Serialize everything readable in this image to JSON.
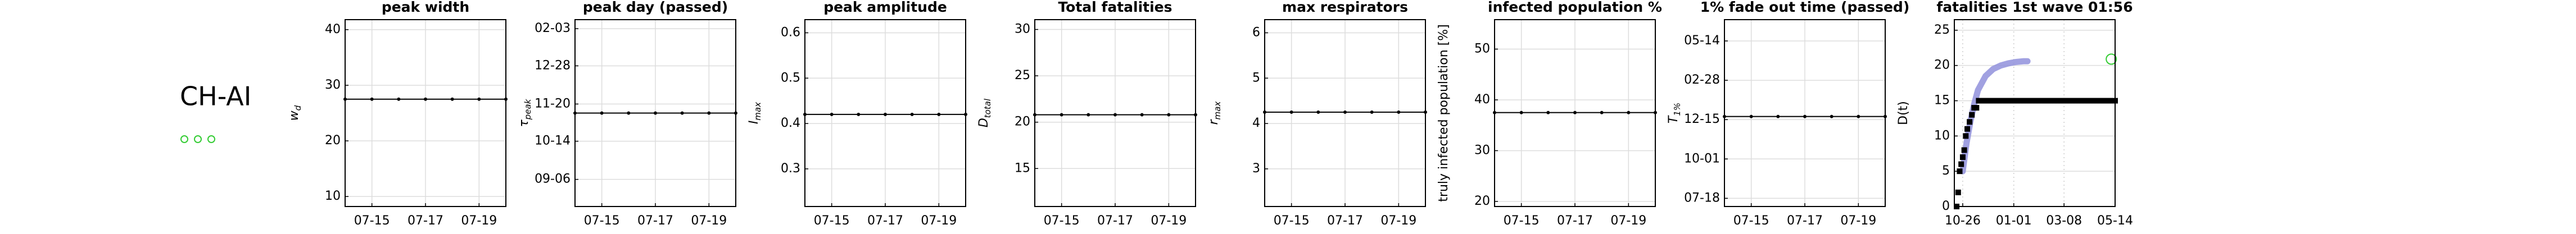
{
  "label": "CH-AI",
  "chart_data": [
    {
      "type": "line",
      "title": "peak width",
      "y_label": "w",
      "y_label_sub": "d",
      "categories": [
        null,
        "07-15",
        null,
        "07-17",
        null,
        "07-19",
        null
      ],
      "values": [
        27.5,
        27.5,
        27.5,
        27.5,
        27.5,
        27.5,
        27.5
      ],
      "color": "#000000",
      "ylim": [
        8.2,
        41.8
      ],
      "yticks": [
        10,
        20,
        30,
        40
      ],
      "grid": true
    },
    {
      "type": "line",
      "title": "peak day (passed)",
      "y_label": "τ",
      "y_label_sub": "peak",
      "categories": [
        null,
        "07-15",
        null,
        "07-17",
        null,
        "07-19",
        null
      ],
      "values": [
        66,
        66,
        66,
        66,
        66,
        66,
        66
      ],
      "color": "#000000",
      "ylim": [
        -27,
        159
      ],
      "yticks": [
        {
          "value": 0,
          "label": "09-06"
        },
        {
          "value": 38,
          "label": "10-14"
        },
        {
          "value": 75,
          "label": "11-20"
        },
        {
          "value": 113,
          "label": "12-28"
        },
        {
          "value": 150,
          "label": "02-03"
        }
      ],
      "grid": true
    },
    {
      "type": "line",
      "title": "peak amplitude",
      "y_label": "I",
      "y_label_sub": "max",
      "categories": [
        null,
        "07-15",
        null,
        "07-17",
        null,
        "07-19",
        null
      ],
      "values": [
        0.42,
        0.42,
        0.42,
        0.42,
        0.42,
        0.42,
        0.42
      ],
      "color": "#000000",
      "ylim": [
        0.217,
        0.629
      ],
      "yticks": [
        0.3,
        0.4,
        0.5,
        0.6
      ],
      "grid": true
    },
    {
      "type": "line",
      "title": "Total fatalities",
      "y_label": "D",
      "y_label_sub": "total",
      "categories": [
        null,
        "07-15",
        null,
        "07-17",
        null,
        "07-19",
        null
      ],
      "values": [
        20.8,
        20.8,
        20.8,
        20.8,
        20.8,
        20.8,
        20.8
      ],
      "color": "#000000",
      "ylim": [
        10.9,
        31.06
      ],
      "yticks": [
        15,
        20,
        25,
        30
      ],
      "grid": true
    },
    {
      "type": "line",
      "title": "max respirators",
      "y_label": "r",
      "y_label_sub": "max",
      "categories": [
        null,
        "07-15",
        null,
        "07-17",
        null,
        "07-19",
        null
      ],
      "values": [
        4.25,
        4.25,
        4.25,
        4.25,
        4.25,
        4.25,
        4.25
      ],
      "color": "#000000",
      "ylim": [
        2.17,
        6.29
      ],
      "yticks": [
        3,
        4,
        5,
        6
      ],
      "grid": true
    },
    {
      "type": "line",
      "title": "infected population %",
      "y_label": "truly infected population [%]",
      "categories": [
        null,
        "07-15",
        null,
        "07-17",
        null,
        "07-19",
        null
      ],
      "values": [
        37.5,
        37.5,
        37.5,
        37.5,
        37.5,
        37.5,
        37.5
      ],
      "color": "#000000",
      "ylim": [
        19.0,
        55.8
      ],
      "yticks": [
        20,
        30,
        40,
        50
      ],
      "grid": true
    },
    {
      "type": "line",
      "title": "1% fade out time (passed)",
      "y_label": "T",
      "y_label_sub": "1%",
      "categories": [
        null,
        "07-15",
        null,
        "07-17",
        null,
        "07-19",
        null
      ],
      "values": [
        156,
        156,
        156,
        156,
        156,
        156,
        156
      ],
      "color": "#000000",
      "ylim": [
        -15.6,
        340.6
      ],
      "yticks": [
        {
          "value": 0,
          "label": "07-18"
        },
        {
          "value": 75,
          "label": "10-01"
        },
        {
          "value": 150,
          "label": "12-15"
        },
        {
          "value": 225,
          "label": "02-28"
        },
        {
          "value": 300,
          "label": "05-14"
        }
      ],
      "grid": true
    },
    {
      "type": "scatter",
      "title": "fatalities 1st wave 01:56",
      "y_label": "D(t)",
      "xlim": [
        -11,
        200
      ],
      "xticks": [
        {
          "value": 0,
          "label": "10-26"
        },
        {
          "value": 67,
          "label": "01-01"
        },
        {
          "value": 133,
          "label": "03-08"
        },
        {
          "value": 200,
          "label": "05-14"
        }
      ],
      "ylim": [
        0,
        26.5
      ],
      "yticks": [
        0,
        5,
        10,
        15,
        20,
        25
      ],
      "grid": true,
      "series": [
        {
          "marker": "line",
          "color": "#9090dc",
          "x": [
            0,
            5,
            10,
            15,
            20,
            30,
            40,
            50,
            60,
            70,
            80,
            85
          ],
          "values": [
            5,
            9,
            12,
            14.5,
            16.5,
            18.5,
            19.5,
            20,
            20.3,
            20.5,
            20.6,
            20.6
          ]
        },
        {
          "marker": "square",
          "color": "#000000",
          "x": [
            -8,
            -6,
            -4,
            -2,
            0,
            2,
            4,
            6,
            9,
            12,
            15,
            18,
            21,
            24,
            28,
            32,
            36,
            40,
            44,
            48,
            52,
            56,
            60,
            64,
            68,
            72,
            76,
            80,
            84,
            88,
            92,
            96,
            100,
            104,
            108,
            112,
            116,
            120,
            124,
            128,
            132,
            136,
            140,
            144,
            148,
            152,
            156,
            160,
            164,
            168,
            172,
            176,
            180,
            184,
            188,
            192,
            196,
            200
          ],
          "values": [
            0,
            2,
            5,
            6,
            7,
            8,
            10,
            11,
            12,
            13,
            14,
            14,
            15,
            15,
            15,
            15,
            15,
            15,
            15,
            15,
            15,
            15,
            15,
            15,
            15,
            15,
            15,
            15,
            15,
            15,
            15,
            15,
            15,
            15,
            15,
            15,
            15,
            15,
            15,
            15,
            15,
            15,
            15,
            15,
            15,
            15,
            15,
            15,
            15,
            15,
            15,
            15,
            15,
            15,
            15,
            15,
            15,
            15
          ]
        },
        {
          "marker": "circle",
          "color": "#33cc33",
          "x": [
            195
          ],
          "values": [
            20.9
          ]
        }
      ]
    }
  ]
}
